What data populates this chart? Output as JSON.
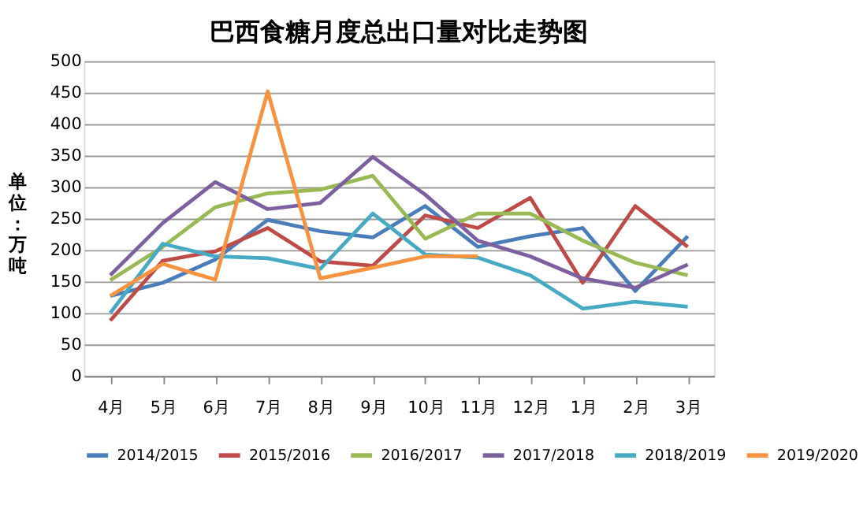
{
  "chart_data": {
    "type": "line",
    "title": "巴西食糖月度总出口量对比走势图",
    "ylabel": "单位：万吨",
    "categories": [
      "4月",
      "5月",
      "6月",
      "7月",
      "8月",
      "9月",
      "10月",
      "11月",
      "12月",
      "1月",
      "2月",
      "3月"
    ],
    "series": [
      {
        "name": "2014/2015",
        "color": "#4a7ebb",
        "values": [
          127,
          148,
          185,
          248,
          230,
          220,
          270,
          205,
          222,
          235,
          135,
          222
        ]
      },
      {
        "name": "2015/2016",
        "color": "#be4b48",
        "values": [
          88,
          183,
          198,
          235,
          182,
          175,
          255,
          235,
          283,
          148,
          270,
          205
        ]
      },
      {
        "name": "2016/2017",
        "color": "#98b954",
        "values": [
          152,
          205,
          268,
          290,
          296,
          318,
          218,
          258,
          258,
          215,
          180,
          160
        ]
      },
      {
        "name": "2017/2018",
        "color": "#7d60a0",
        "values": [
          160,
          243,
          308,
          265,
          275,
          348,
          288,
          215,
          190,
          155,
          140,
          177
        ]
      },
      {
        "name": "2018/2019",
        "color": "#46aac5",
        "values": [
          100,
          210,
          190,
          187,
          170,
          258,
          193,
          188,
          160,
          107,
          118,
          110
        ]
      },
      {
        "name": "2019/2020",
        "color": "#f69240",
        "values": [
          127,
          178,
          153,
          452,
          155,
          172,
          190,
          190,
          null,
          null,
          null,
          null
        ]
      }
    ],
    "ylim": [
      0,
      500
    ],
    "yticks": [
      0,
      50,
      100,
      150,
      200,
      250,
      300,
      350,
      400,
      450,
      500
    ],
    "grid": "y",
    "legend": "bottom",
    "marker": "none",
    "line_style": "solid"
  }
}
